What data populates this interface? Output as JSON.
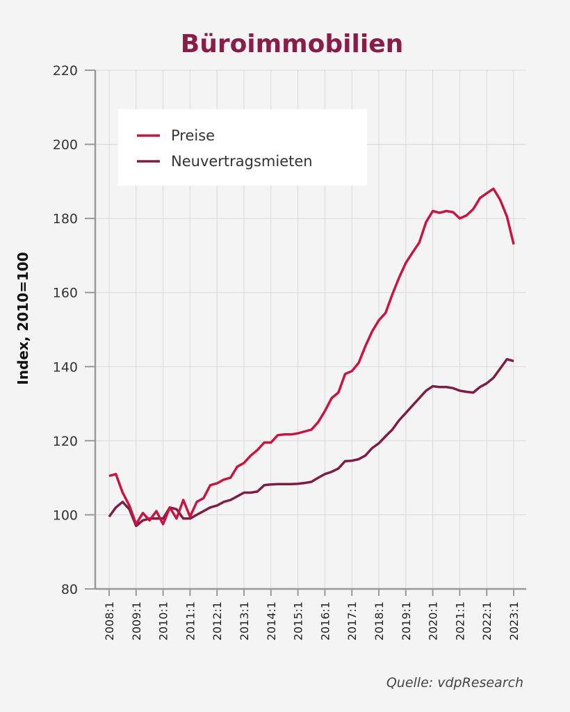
{
  "colors": {
    "title": "#8a1d47",
    "preise": "#c8143f",
    "mieten": "#7d1d45",
    "grid": "#d8d8d8",
    "axis": "#999999"
  },
  "chart_data": {
    "type": "line",
    "title": "Büroimmobilien",
    "xlabel": "",
    "ylabel": "Index, 2010=100",
    "ylim": [
      80,
      220
    ],
    "yticks": [
      "80",
      "100",
      "120",
      "140",
      "160",
      "180",
      "200",
      "220"
    ],
    "xticks": [
      "2008:1",
      "2009:1",
      "2010:1",
      "2011:1",
      "2012:1",
      "2013:1",
      "2014:1",
      "2015:1",
      "2016:1",
      "2017:1",
      "2018:1",
      "2019:1",
      "2020:1",
      "2021:1",
      "2022:1",
      "2023:1"
    ],
    "x_start": "2008:1",
    "x_frequency": "quarterly",
    "grid": true,
    "legend_position": "top-left",
    "series": [
      {
        "name": "Preise",
        "values": [
          110.5,
          111,
          106,
          102.5,
          97.5,
          100.5,
          98.5,
          101,
          97.5,
          102,
          99,
          104,
          99.5,
          103.5,
          104.5,
          108,
          108.5,
          109.5,
          110,
          113,
          114,
          116,
          117.5,
          119.5,
          119.5,
          121.5,
          121.7,
          121.7,
          122,
          122.5,
          123,
          125,
          128,
          131.5,
          133,
          138,
          138.8,
          141,
          145.5,
          149.5,
          152.5,
          154.5,
          159.5,
          164,
          168,
          170.8,
          173.5,
          179,
          182,
          181.5,
          182,
          181.7,
          180,
          180.8,
          182.5,
          185.5,
          186.8,
          188,
          185,
          180.5,
          173
        ]
      },
      {
        "name": "Neuvertragsmieten",
        "values": [
          99.5,
          102,
          103.5,
          101.5,
          97,
          98.5,
          99,
          99,
          99,
          102,
          101.5,
          99,
          99,
          100,
          101,
          102,
          102.5,
          103.5,
          104,
          105,
          106,
          106,
          106.3,
          108,
          108.2,
          108.3,
          108.3,
          108.3,
          108.4,
          108.6,
          108.9,
          110,
          111,
          111.6,
          112.5,
          114.5,
          114.6,
          115,
          116,
          118,
          119.3,
          121.2,
          123,
          125.5,
          127.5,
          129.5,
          131.5,
          133.5,
          134.7,
          134.5,
          134.5,
          134.2,
          133.5,
          133.2,
          133,
          134.5,
          135.5,
          137,
          139.5,
          142,
          141.5
        ]
      }
    ],
    "source": "Quelle: vdpResearch"
  }
}
